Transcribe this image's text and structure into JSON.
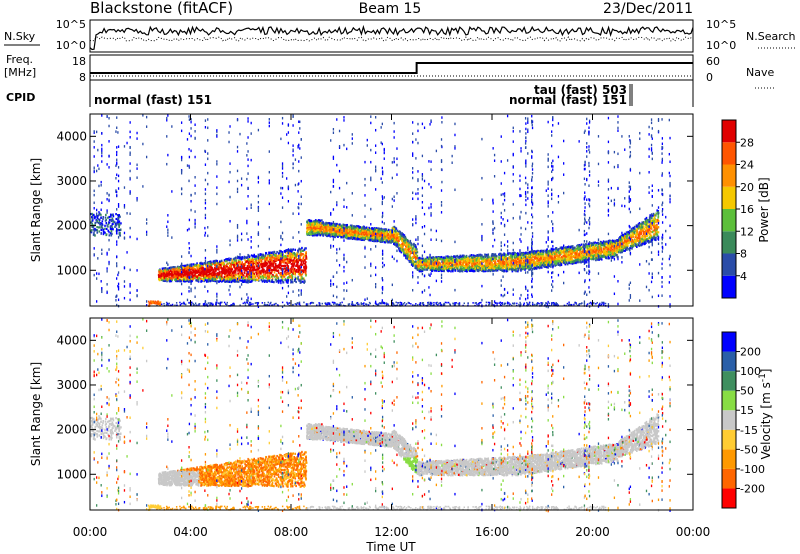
{
  "header": {
    "station": "Blackstone (fitACF)",
    "beam": "Beam 15",
    "date": "23/Dec/2011"
  },
  "noise_panel": {
    "left_label": "N.Sky",
    "right_label": "N.Search",
    "left_ticks": [
      "10^5",
      "10^0"
    ],
    "right_ticks": [
      "10^5",
      "10^0"
    ]
  },
  "freq_panel": {
    "left_label_top": "Freq.",
    "left_label_bottom": "[MHz]",
    "left_ticks": [
      "18",
      "8"
    ],
    "right_label": "Nave",
    "right_ticks": [
      "60",
      "0"
    ],
    "freq_step_time_hours": 13.0
  },
  "cpid_panel": {
    "label": "CPID",
    "entries": [
      {
        "text": "normal (fast) 151"
      },
      {
        "text": "tau (fast) 503"
      },
      {
        "text": "normal (fast) 151"
      }
    ]
  },
  "colors": {
    "power_scale": [
      "#0000ff",
      "#2a4ca8",
      "#3a8a5a",
      "#5cbf3a",
      "#f5c800",
      "#ff9000",
      "#ff5500",
      "#e00000"
    ],
    "velocity_scale": [
      "#ff0000",
      "#ff6600",
      "#ff9900",
      "#ffcc33",
      "#c8c8c8",
      "#88dd44",
      "#3f8f5f",
      "#2a5fa8",
      "#0000ff"
    ]
  },
  "chart_data": [
    {
      "type": "heatmap",
      "name": "power",
      "ylabel": "Slant Range [km]",
      "ylim": [
        200,
        4500
      ],
      "yticks": [
        "1000",
        "2000",
        "3000",
        "4000"
      ],
      "xlim": [
        0,
        24
      ],
      "xticks": [
        "00:00",
        "04:00",
        "08:00",
        "12:00",
        "16:00",
        "20:00",
        "00:00"
      ],
      "colorbar": {
        "label": "Power [dB]",
        "ticks": [
          "4",
          "8",
          "12",
          "16",
          "20",
          "24",
          "28"
        ],
        "range": [
          0,
          30
        ]
      }
    },
    {
      "type": "heatmap",
      "name": "velocity",
      "ylabel": "Slant Range [km]",
      "ylim": [
        200,
        4500
      ],
      "yticks": [
        "1000",
        "2000",
        "3000",
        "4000"
      ],
      "xlim": [
        0,
        24
      ],
      "xticks": [
        "00:00",
        "04:00",
        "08:00",
        "12:00",
        "16:00",
        "20:00",
        "00:00"
      ],
      "xlabel": "Time UT",
      "colorbar": {
        "label": "Velocity [m s^-1]",
        "ticks": [
          "200",
          "100",
          "50",
          "15",
          "-15",
          "-50",
          "-100",
          "-200"
        ],
        "range": [
          -250,
          250
        ]
      }
    }
  ]
}
